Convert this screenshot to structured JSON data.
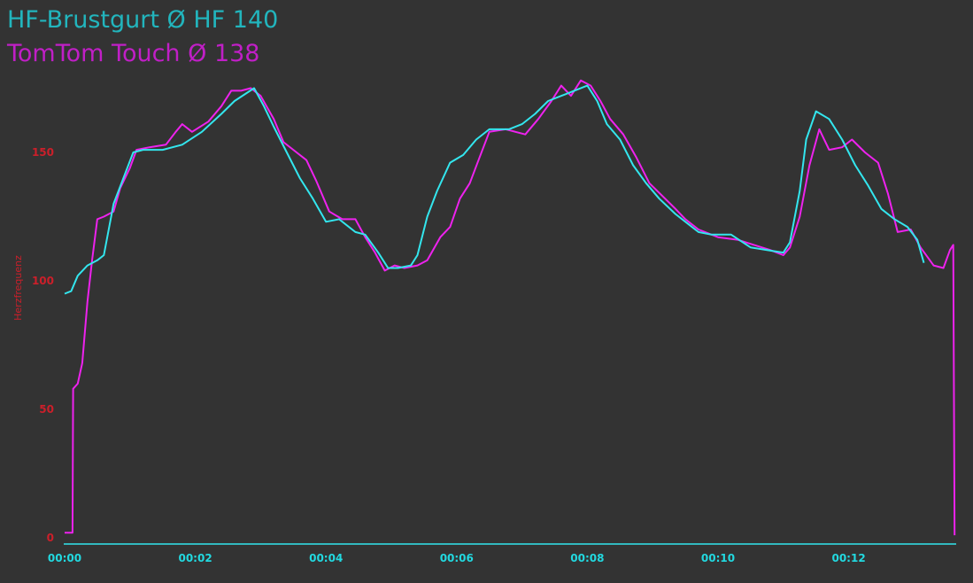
{
  "chart_data": {
    "type": "line",
    "ylabel": "Herzfrequenz",
    "xlabel": "",
    "ylim": [
      0,
      180
    ],
    "y_ticks": [
      "0",
      "50",
      "100",
      "150"
    ],
    "x_ticks": [
      "00:00",
      "00:02",
      "00:04",
      "00:06",
      "00:08",
      "00:10",
      "00:12"
    ],
    "x_unit": "minutes",
    "xlim": [
      0,
      13.6
    ],
    "grid": false,
    "legend_position": "top-left",
    "series": [
      {
        "name": "HF-Brustgurt Ø HF 140",
        "color": "#33e6ee",
        "points": [
          [
            0.0,
            95
          ],
          [
            0.1,
            96
          ],
          [
            0.2,
            102
          ],
          [
            0.35,
            106
          ],
          [
            0.5,
            108
          ],
          [
            0.6,
            110
          ],
          [
            0.75,
            130
          ],
          [
            0.9,
            140
          ],
          [
            1.05,
            150
          ],
          [
            1.2,
            151
          ],
          [
            1.5,
            151
          ],
          [
            1.8,
            153
          ],
          [
            2.1,
            158
          ],
          [
            2.4,
            165
          ],
          [
            2.6,
            170
          ],
          [
            2.9,
            175
          ],
          [
            3.05,
            168
          ],
          [
            3.2,
            160
          ],
          [
            3.4,
            150
          ],
          [
            3.6,
            140
          ],
          [
            3.8,
            132
          ],
          [
            4.0,
            123
          ],
          [
            4.2,
            124
          ],
          [
            4.45,
            119
          ],
          [
            4.6,
            118
          ],
          [
            4.8,
            111
          ],
          [
            4.95,
            105
          ],
          [
            5.1,
            105
          ],
          [
            5.3,
            106
          ],
          [
            5.4,
            110
          ],
          [
            5.55,
            125
          ],
          [
            5.7,
            135
          ],
          [
            5.9,
            146
          ],
          [
            6.1,
            149
          ],
          [
            6.3,
            155
          ],
          [
            6.5,
            159
          ],
          [
            6.8,
            159
          ],
          [
            7.0,
            161
          ],
          [
            7.2,
            165
          ],
          [
            7.4,
            170
          ],
          [
            7.6,
            172
          ],
          [
            7.8,
            174
          ],
          [
            8.0,
            176
          ],
          [
            8.15,
            170
          ],
          [
            8.3,
            161
          ],
          [
            8.5,
            155
          ],
          [
            8.7,
            145
          ],
          [
            8.9,
            138
          ],
          [
            9.1,
            132
          ],
          [
            9.35,
            126
          ],
          [
            9.55,
            122
          ],
          [
            9.7,
            119
          ],
          [
            9.9,
            118
          ],
          [
            10.2,
            118
          ],
          [
            10.5,
            113
          ],
          [
            10.75,
            112
          ],
          [
            11.0,
            111
          ],
          [
            11.1,
            115
          ],
          [
            11.25,
            135
          ],
          [
            11.35,
            155
          ],
          [
            11.5,
            166
          ],
          [
            11.7,
            163
          ],
          [
            11.9,
            155
          ],
          [
            12.1,
            145
          ],
          [
            12.3,
            137
          ],
          [
            12.5,
            128
          ],
          [
            12.7,
            124
          ],
          [
            12.9,
            121
          ],
          [
            13.05,
            116
          ],
          [
            13.15,
            107
          ]
        ]
      },
      {
        "name": "TomTom Touch Ø 138",
        "color": "#ee22ee",
        "points": [
          [
            0.0,
            2
          ],
          [
            0.12,
            2
          ],
          [
            0.13,
            58
          ],
          [
            0.2,
            60
          ],
          [
            0.27,
            68
          ],
          [
            0.35,
            92
          ],
          [
            0.42,
            108
          ],
          [
            0.5,
            124
          ],
          [
            0.6,
            125
          ],
          [
            0.75,
            127
          ],
          [
            0.85,
            136
          ],
          [
            1.0,
            144
          ],
          [
            1.1,
            151
          ],
          [
            1.3,
            152
          ],
          [
            1.55,
            153
          ],
          [
            1.7,
            158
          ],
          [
            1.8,
            161
          ],
          [
            1.95,
            158
          ],
          [
            2.2,
            162
          ],
          [
            2.4,
            168
          ],
          [
            2.55,
            174
          ],
          [
            2.7,
            174
          ],
          [
            2.85,
            175
          ],
          [
            3.0,
            172
          ],
          [
            3.2,
            163
          ],
          [
            3.35,
            154
          ],
          [
            3.5,
            151
          ],
          [
            3.7,
            147
          ],
          [
            3.85,
            139
          ],
          [
            4.05,
            127
          ],
          [
            4.25,
            124
          ],
          [
            4.45,
            124
          ],
          [
            4.6,
            117
          ],
          [
            4.75,
            111
          ],
          [
            4.9,
            104
          ],
          [
            5.05,
            106
          ],
          [
            5.2,
            105
          ],
          [
            5.4,
            106
          ],
          [
            5.55,
            108
          ],
          [
            5.75,
            117
          ],
          [
            5.9,
            121
          ],
          [
            6.05,
            132
          ],
          [
            6.2,
            138
          ],
          [
            6.35,
            148
          ],
          [
            6.5,
            158
          ],
          [
            6.75,
            159
          ],
          [
            6.9,
            158
          ],
          [
            7.05,
            157
          ],
          [
            7.25,
            163
          ],
          [
            7.45,
            170
          ],
          [
            7.6,
            176
          ],
          [
            7.75,
            172
          ],
          [
            7.9,
            178
          ],
          [
            8.05,
            176
          ],
          [
            8.2,
            170
          ],
          [
            8.35,
            163
          ],
          [
            8.55,
            157
          ],
          [
            8.75,
            148
          ],
          [
            8.95,
            138
          ],
          [
            9.15,
            133
          ],
          [
            9.35,
            128
          ],
          [
            9.5,
            124
          ],
          [
            9.7,
            120
          ],
          [
            10.0,
            117
          ],
          [
            10.3,
            116
          ],
          [
            10.55,
            114
          ],
          [
            10.8,
            112
          ],
          [
            11.0,
            110
          ],
          [
            11.1,
            113
          ],
          [
            11.25,
            125
          ],
          [
            11.4,
            145
          ],
          [
            11.55,
            159
          ],
          [
            11.7,
            151
          ],
          [
            11.9,
            152
          ],
          [
            12.05,
            155
          ],
          [
            12.25,
            150
          ],
          [
            12.45,
            146
          ],
          [
            12.6,
            134
          ],
          [
            12.75,
            119
          ],
          [
            12.95,
            120
          ],
          [
            13.1,
            113
          ],
          [
            13.3,
            106
          ],
          [
            13.45,
            105
          ],
          [
            13.55,
            112
          ],
          [
            13.6,
            114
          ],
          [
            13.62,
            1
          ]
        ]
      }
    ]
  }
}
